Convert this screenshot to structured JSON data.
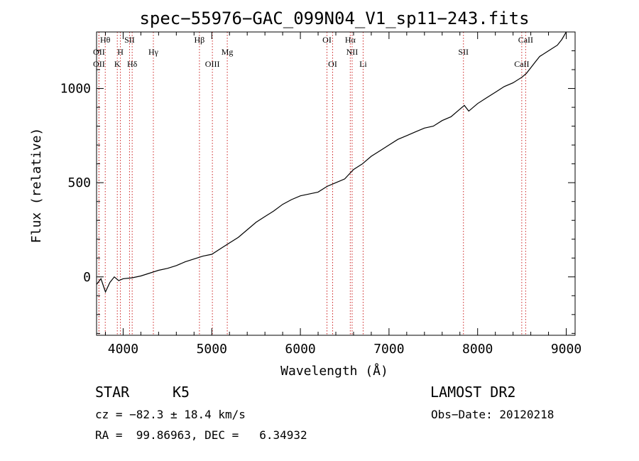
{
  "chart_data": {
    "type": "line",
    "title": "spec−55976−GAC_099N04_V1_sp11−243.fits",
    "xlabel": "Wavelength (Å)",
    "ylabel": "Flux (relative)",
    "xlim": [
      3700,
      9100
    ],
    "ylim": [
      -310,
      1300
    ],
    "x_ticks": [
      4000,
      5000,
      6000,
      7000,
      8000,
      9000
    ],
    "y_ticks": [
      0,
      500,
      1000
    ],
    "x_minor_step": 200,
    "y_minor_step": 100,
    "series": [
      {
        "x": [
          3700,
          3750,
          3800,
          3850,
          3900,
          3950,
          4000,
          4100,
          4200,
          4300,
          4400,
          4500,
          4600,
          4700,
          4800,
          4900,
          5000,
          5100,
          5200,
          5300,
          5400,
          5500,
          5600,
          5700,
          5800,
          5900,
          6000,
          6100,
          6200,
          6300,
          6400,
          6500,
          6560,
          6600,
          6700,
          6800,
          6900,
          7000,
          7100,
          7200,
          7300,
          7400,
          7500,
          7600,
          7700,
          7800,
          7850,
          7900,
          8000,
          8100,
          8200,
          8300,
          8400,
          8500,
          8550,
          8600,
          8650,
          8700,
          8800,
          8900,
          8950,
          9000
        ],
        "y": [
          -40,
          -10,
          -80,
          -30,
          0,
          -20,
          -10,
          -5,
          5,
          20,
          35,
          45,
          60,
          80,
          95,
          110,
          120,
          150,
          180,
          210,
          250,
          290,
          320,
          350,
          385,
          410,
          430,
          440,
          450,
          480,
          500,
          520,
          550,
          570,
          600,
          640,
          670,
          700,
          730,
          750,
          770,
          790,
          800,
          830,
          850,
          890,
          910,
          880,
          920,
          950,
          980,
          1010,
          1030,
          1060,
          1080,
          1110,
          1140,
          1170,
          1200,
          1230,
          1260,
          1300
        ]
      }
    ],
    "line_markers": [
      {
        "label": "Hθ",
        "wavelength": 3798,
        "row": 0
      },
      {
        "label": "OII",
        "wavelength": 3727,
        "row": 1
      },
      {
        "label": "OII",
        "wavelength": 3727,
        "row": 2
      },
      {
        "label": "H",
        "wavelength": 3969,
        "row": 1
      },
      {
        "label": "K",
        "wavelength": 3934,
        "row": 2
      },
      {
        "label": "SII",
        "wavelength": 4072,
        "row": 0
      },
      {
        "label": "Hδ",
        "wavelength": 4102,
        "row": 2
      },
      {
        "label": "Hγ",
        "wavelength": 4341,
        "row": 1
      },
      {
        "label": "Hβ",
        "wavelength": 4861,
        "row": 0
      },
      {
        "label": "OIII",
        "wavelength": 5007,
        "row": 2
      },
      {
        "label": "Mg",
        "wavelength": 5175,
        "row": 1
      },
      {
        "label": "OI",
        "wavelength": 6300,
        "row": 0
      },
      {
        "label": "OI",
        "wavelength": 6364,
        "row": 2
      },
      {
        "label": "Hα",
        "wavelength": 6563,
        "row": 0
      },
      {
        "label": "NII",
        "wavelength": 6584,
        "row": 1
      },
      {
        "label": "Li",
        "wavelength": 6708,
        "row": 2
      },
      {
        "label": "SII",
        "wavelength": 7840,
        "row": 1
      },
      {
        "label": "CaII",
        "wavelength": 8542,
        "row": 0
      },
      {
        "label": "CaII",
        "wavelength": 8498,
        "row": 2
      }
    ],
    "grid": false,
    "line_color": "#000000",
    "marker_color": "#cc2222"
  },
  "info": {
    "object_class": "STAR",
    "subclass": "K5",
    "survey": "LAMOST DR2",
    "redshift": "cz = −82.3 ± 18.4 km/s",
    "obs_date": "Obs−Date: 20120218",
    "coords": "RA =  99.86963, DEC =   6.34932"
  }
}
